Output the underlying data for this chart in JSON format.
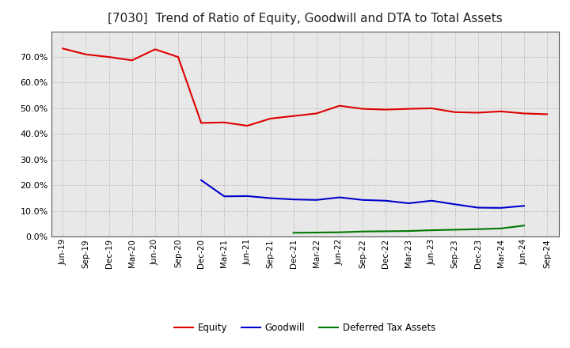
{
  "title": "[7030]  Trend of Ratio of Equity, Goodwill and DTA to Total Assets",
  "x_labels": [
    "Jun-19",
    "Sep-19",
    "Dec-19",
    "Mar-20",
    "Jun-20",
    "Sep-20",
    "Dec-20",
    "Mar-21",
    "Jun-21",
    "Sep-21",
    "Dec-21",
    "Mar-22",
    "Jun-22",
    "Sep-22",
    "Dec-22",
    "Mar-23",
    "Jun-23",
    "Sep-23",
    "Dec-23",
    "Mar-24",
    "Jun-24",
    "Sep-24"
  ],
  "equity": [
    0.733,
    0.71,
    0.7,
    0.687,
    0.73,
    0.7,
    0.443,
    0.445,
    0.432,
    0.46,
    0.47,
    0.48,
    0.51,
    0.498,
    0.495,
    0.498,
    0.5,
    0.485,
    0.483,
    0.488,
    0.48,
    0.477
  ],
  "goodwill": [
    null,
    null,
    null,
    null,
    null,
    null,
    0.22,
    0.157,
    0.158,
    0.15,
    0.145,
    0.143,
    0.153,
    0.143,
    0.14,
    0.13,
    0.14,
    0.126,
    0.113,
    0.112,
    0.12,
    null
  ],
  "dta": [
    null,
    null,
    null,
    null,
    null,
    null,
    null,
    null,
    null,
    null,
    0.015,
    0.016,
    0.017,
    0.02,
    0.021,
    0.022,
    0.025,
    0.027,
    0.029,
    0.032,
    0.043,
    null
  ],
  "equity_color": "#dd0000",
  "goodwill_color": "#0000cc",
  "dta_color": "#007700",
  "ylim": [
    0.0,
    0.8
  ],
  "yticks": [
    0.0,
    0.1,
    0.2,
    0.3,
    0.4,
    0.5,
    0.6,
    0.7
  ],
  "background_color": "#ffffff",
  "plot_bg_color": "#e8e8e8",
  "grid_color": "#999999",
  "title_fontsize": 11,
  "axis_fontsize": 7.5,
  "legend_labels": [
    "Equity",
    "Goodwill",
    "Deferred Tax Assets"
  ]
}
